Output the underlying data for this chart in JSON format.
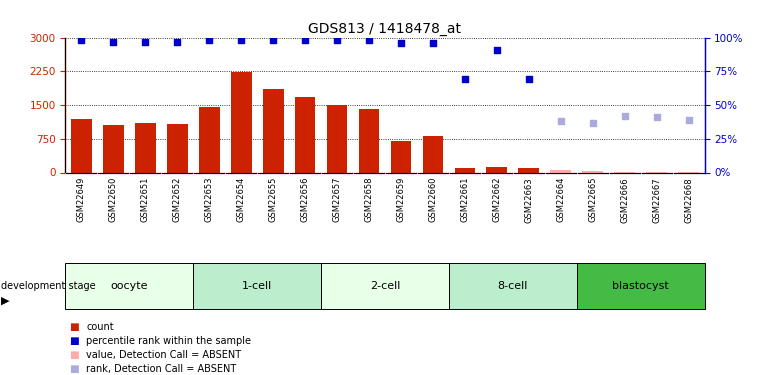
{
  "title": "GDS813 / 1418478_at",
  "samples": [
    "GSM22649",
    "GSM22650",
    "GSM22651",
    "GSM22652",
    "GSM22653",
    "GSM22654",
    "GSM22655",
    "GSM22656",
    "GSM22657",
    "GSM22658",
    "GSM22659",
    "GSM22660",
    "GSM22661",
    "GSM22662",
    "GSM22663",
    "GSM22664",
    "GSM22665",
    "GSM22666",
    "GSM22667",
    "GSM22668"
  ],
  "counts": [
    1200,
    1050,
    1100,
    1070,
    1450,
    2230,
    1850,
    1680,
    1500,
    1420,
    700,
    820,
    90,
    130,
    90,
    60,
    25,
    20,
    18,
    22
  ],
  "percentile_rank": [
    98,
    97,
    97,
    97,
    98,
    98,
    98,
    98,
    98,
    98,
    96,
    96,
    69,
    91,
    69,
    null,
    null,
    null,
    null,
    null
  ],
  "absent_rank": [
    null,
    null,
    null,
    null,
    null,
    null,
    null,
    null,
    null,
    null,
    null,
    null,
    null,
    null,
    null,
    38,
    37,
    42,
    41,
    39
  ],
  "detection_call": [
    "P",
    "P",
    "P",
    "P",
    "P",
    "P",
    "P",
    "P",
    "P",
    "P",
    "P",
    "P",
    "P",
    "P",
    "P",
    "A",
    "A",
    "A",
    "A",
    "A"
  ],
  "stages": [
    {
      "name": "oocyte",
      "start": 0,
      "end": 4,
      "color": "#e8ffe8"
    },
    {
      "name": "1-cell",
      "start": 4,
      "end": 8,
      "color": "#bbeecc"
    },
    {
      "name": "2-cell",
      "start": 8,
      "end": 12,
      "color": "#e8ffe8"
    },
    {
      "name": "8-cell",
      "start": 12,
      "end": 16,
      "color": "#bbeecc"
    },
    {
      "name": "blastocyst",
      "start": 16,
      "end": 20,
      "color": "#44bb44"
    }
  ],
  "ylim_left": [
    0,
    3000
  ],
  "ylim_right": [
    0,
    100
  ],
  "yticks_left": [
    0,
    750,
    1500,
    2250,
    3000
  ],
  "yticks_right": [
    0,
    25,
    50,
    75,
    100
  ],
  "bar_color": "#cc2200",
  "bar_absent_color": "#ffaaaa",
  "dot_color": "#0000cc",
  "dot_absent_color": "#aaaadd"
}
